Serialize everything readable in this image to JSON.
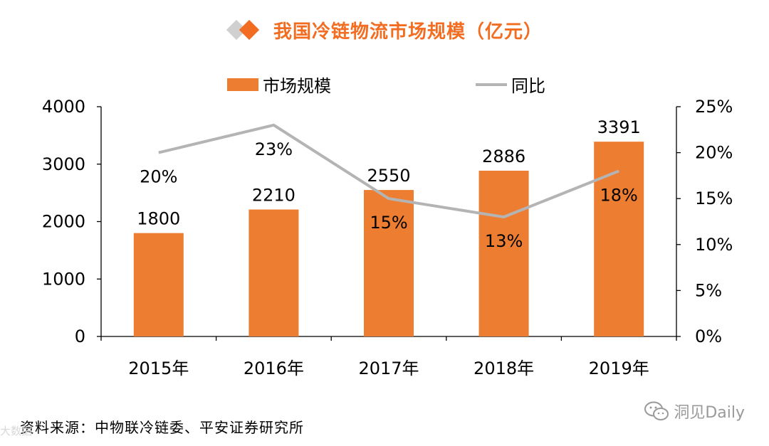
{
  "header": {
    "title": "我国冷链物流市场规模（亿元）"
  },
  "source": {
    "text": "资料来源：中物联冷链委、平安证券研究所"
  },
  "watermark": {
    "text": "洞见Daily",
    "left_text": "大数据"
  },
  "colors": {
    "bar": "#ed7d31",
    "line": "#b4b4b4",
    "title": "#f26d21"
  },
  "chart_data": {
    "type": "bar+line",
    "title": "我国冷链物流市场规模（亿元）",
    "categories": [
      "2015年",
      "2016年",
      "2017年",
      "2018年",
      "2019年"
    ],
    "series": [
      {
        "name": "市场规模",
        "type": "bar",
        "axis": "left",
        "values": [
          1800,
          2210,
          2550,
          2886,
          3391
        ],
        "labels": [
          "1800",
          "2210",
          "2550",
          "2886",
          "3391"
        ]
      },
      {
        "name": "同比",
        "type": "line",
        "axis": "right",
        "values": [
          20,
          23,
          15,
          13,
          18
        ],
        "labels": [
          "20%",
          "23%",
          "15%",
          "13%",
          "18%"
        ]
      }
    ],
    "y_left": {
      "min": 0,
      "max": 4000,
      "ticks": [
        0,
        1000,
        2000,
        3000,
        4000
      ],
      "tick_labels": [
        "0",
        "1000",
        "2000",
        "3000",
        "4000"
      ]
    },
    "y_right": {
      "min": 0,
      "max": 25,
      "ticks": [
        0,
        5,
        10,
        15,
        20,
        25
      ],
      "tick_labels": [
        "0%",
        "5%",
        "10%",
        "15%",
        "20%",
        "25%"
      ]
    },
    "legend": {
      "position": "top",
      "items": [
        "市场规模",
        "同比"
      ]
    }
  }
}
